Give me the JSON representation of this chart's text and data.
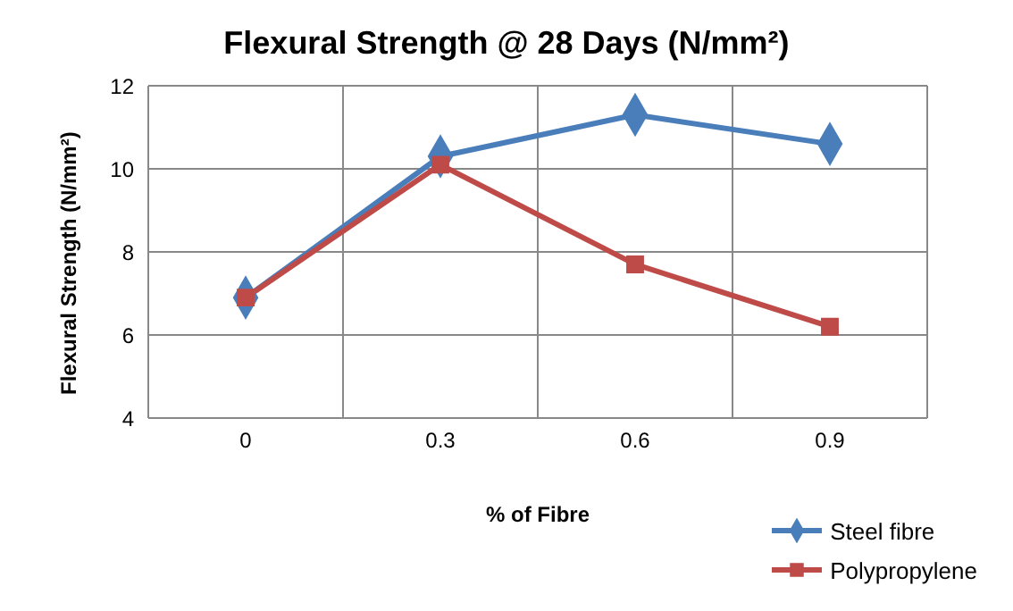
{
  "chart_data": {
    "type": "line",
    "title": "Flexural Strength @ 28 Days (N/mm²)",
    "xlabel": "% of Fibre",
    "ylabel": "Flexural Strength  (N/mm²)",
    "categories": [
      "0",
      "0.3",
      "0.6",
      "0.9"
    ],
    "series": [
      {
        "name": "Steel fibre",
        "color": "#4a7ebb",
        "marker": "diamond",
        "values": [
          6.9,
          10.3,
          11.3,
          10.6
        ]
      },
      {
        "name": "Polypropylene",
        "color": "#be4b48",
        "marker": "square",
        "values": [
          6.9,
          10.1,
          7.7,
          6.2
        ]
      }
    ],
    "ylim": [
      4,
      12
    ],
    "yticks": [
      4,
      6,
      8,
      10,
      12
    ],
    "grid": true,
    "legend": "bottom right",
    "line_style": "solid"
  }
}
